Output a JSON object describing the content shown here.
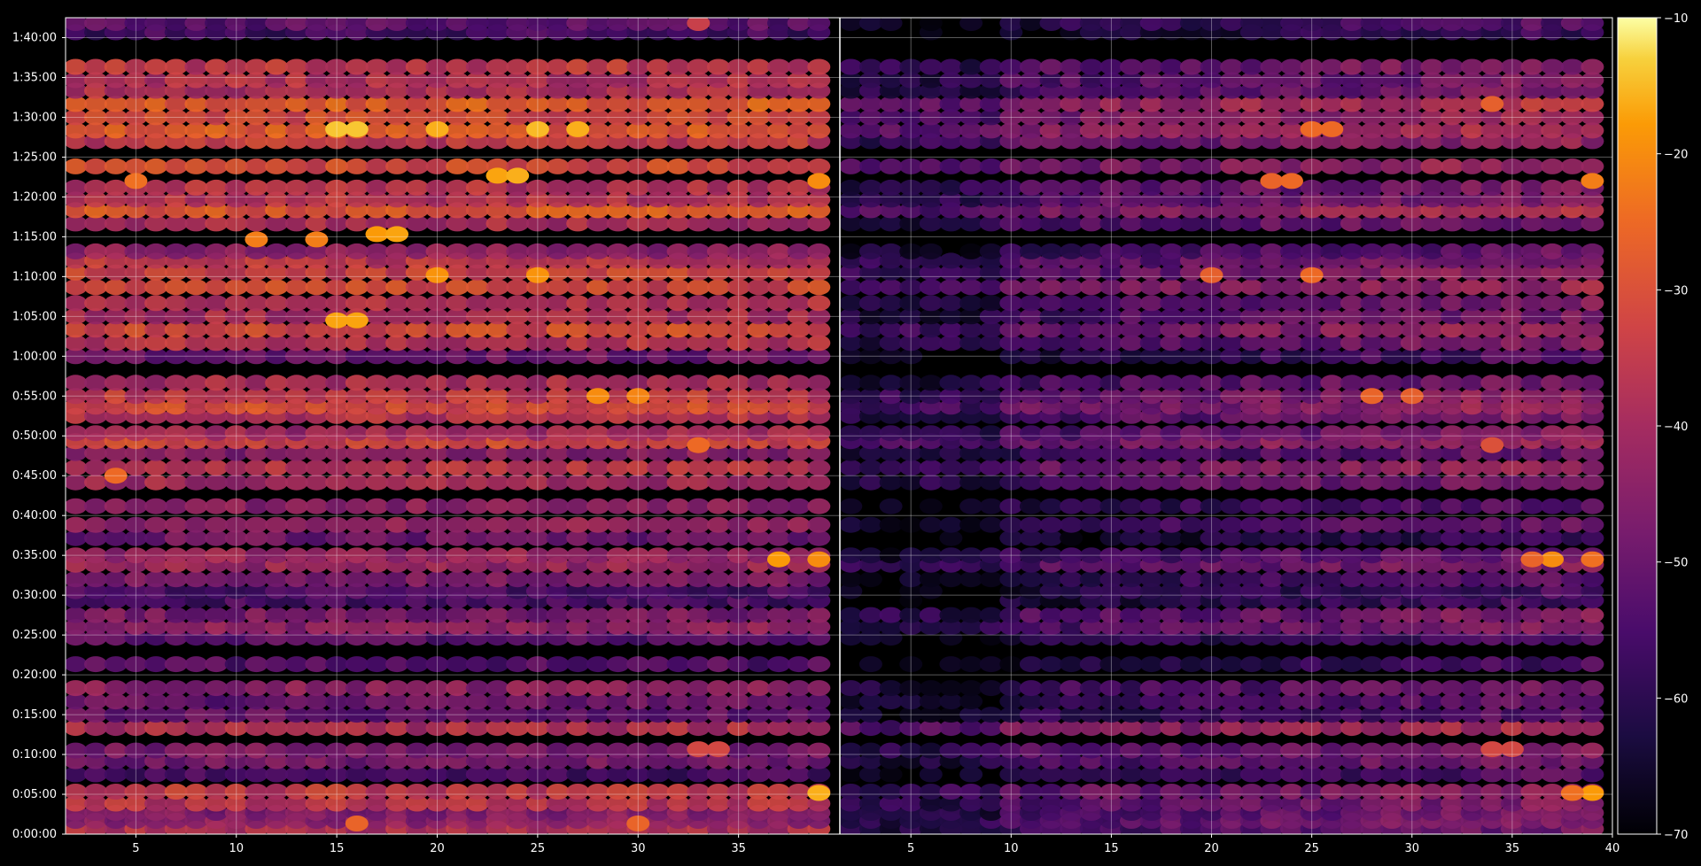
{
  "chart_data": {
    "type": "heatmap",
    "title": "",
    "xlabel": "",
    "ylabel": "",
    "background": "#000000",
    "grid": true,
    "colormap": "inferno",
    "x_axis": {
      "panel_range": [
        1.5,
        40
      ],
      "ticks": [
        5,
        10,
        15,
        20,
        25,
        30,
        35,
        40
      ],
      "tick_labels": [
        "5",
        "10",
        "15",
        "20",
        "25",
        "30",
        "35",
        "40"
      ]
    },
    "y_axis": {
      "range_seconds": [
        0,
        6150
      ],
      "ticks_seconds": [
        0,
        300,
        600,
        900,
        1200,
        1500,
        1800,
        2100,
        2400,
        2700,
        3000,
        3300,
        3600,
        3900,
        4200,
        4500,
        4800,
        5100,
        5400,
        5700,
        6000
      ],
      "tick_labels": [
        "0:00:00",
        "0:05:00",
        "0:10:00",
        "0:15:00",
        "0:20:00",
        "0:25:00",
        "0:30:00",
        "0:35:00",
        "0:40:00",
        "0:45:00",
        "0:50:00",
        "0:55:00",
        "1:00:00",
        "1:05:00",
        "1:10:00",
        "1:15:00",
        "1:20:00",
        "1:25:00",
        "1:30:00",
        "1:35:00",
        "1:40:00"
      ]
    },
    "colorbar": {
      "range": [
        -70,
        -10
      ],
      "ticks": [
        -10,
        -20,
        -30,
        -40,
        -50,
        -60,
        -70
      ],
      "tick_labels": [
        "−10",
        "−20",
        "−30",
        "−40",
        "−50",
        "−60",
        "−70"
      ]
    },
    "panels": [
      {
        "name": "left",
        "x_range": [
          1.5,
          40
        ],
        "x_tick_values": [
          5,
          10,
          15,
          20,
          25,
          30,
          35
        ],
        "bands": [
          {
            "t": 40,
            "v": -38
          },
          {
            "t": 100,
            "v": -44
          },
          {
            "t": 160,
            "v": -46
          },
          {
            "t": 230,
            "v": -36
          },
          {
            "t": 320,
            "v": -35
          },
          {
            "t": 450,
            "v": -56
          },
          {
            "t": 550,
            "v": -48
          },
          {
            "t": 630,
            "v": -47
          },
          {
            "t": 800,
            "v": -38
          },
          {
            "t": 900,
            "v": -51
          },
          {
            "t": 1000,
            "v": -50
          },
          {
            "t": 1100,
            "v": -44
          },
          {
            "t": 1280,
            "v": -53
          },
          {
            "t": 1480,
            "v": -52
          },
          {
            "t": 1560,
            "v": -44
          },
          {
            "t": 1650,
            "v": -47
          },
          {
            "t": 1760,
            "v": -55
          },
          {
            "t": 1830,
            "v": -55
          },
          {
            "t": 1920,
            "v": -46
          },
          {
            "t": 2030,
            "v": -42
          },
          {
            "t": 2100,
            "v": -42
          },
          {
            "t": 2230,
            "v": -49
          },
          {
            "t": 2330,
            "v": -42
          },
          {
            "t": 2470,
            "v": -44
          },
          {
            "t": 2650,
            "v": -40
          },
          {
            "t": 2760,
            "v": -37
          },
          {
            "t": 2870,
            "v": -45
          },
          {
            "t": 2960,
            "v": -32
          },
          {
            "t": 3020,
            "v": -41
          },
          {
            "t": 3150,
            "v": -37
          },
          {
            "t": 3220,
            "v": -31
          },
          {
            "t": 3300,
            "v": -35
          },
          {
            "t": 3400,
            "v": -39
          },
          {
            "t": 3600,
            "v": -49
          },
          {
            "t": 3700,
            "v": -37
          },
          {
            "t": 3800,
            "v": -31
          },
          {
            "t": 3900,
            "v": -39
          },
          {
            "t": 4000,
            "v": -37
          },
          {
            "t": 4120,
            "v": -32
          },
          {
            "t": 4230,
            "v": -33
          },
          {
            "t": 4320,
            "v": -36
          },
          {
            "t": 4390,
            "v": -44
          },
          {
            "t": 4600,
            "v": -39
          },
          {
            "t": 4700,
            "v": -28
          },
          {
            "t": 4780,
            "v": -37
          },
          {
            "t": 4870,
            "v": -37
          },
          {
            "t": 5030,
            "v": -31
          },
          {
            "t": 5220,
            "v": -35
          },
          {
            "t": 5300,
            "v": -28
          },
          {
            "t": 5400,
            "v": -31
          },
          {
            "t": 5500,
            "v": -28
          },
          {
            "t": 5600,
            "v": -38
          },
          {
            "t": 5680,
            "v": -38
          },
          {
            "t": 5780,
            "v": -35
          },
          {
            "t": 6040,
            "v": -56
          },
          {
            "t": 6110,
            "v": -52
          }
        ],
        "hotspots": [
          {
            "x": 15,
            "t": 5310,
            "v": -14
          },
          {
            "x": 16,
            "t": 5310,
            "v": -14
          },
          {
            "x": 20,
            "t": 5310,
            "v": -16
          },
          {
            "x": 25,
            "t": 5310,
            "v": -15
          },
          {
            "x": 27,
            "t": 5310,
            "v": -16
          },
          {
            "x": 5,
            "t": 4920,
            "v": -24
          },
          {
            "x": 23,
            "t": 4960,
            "v": -17
          },
          {
            "x": 24,
            "t": 4960,
            "v": -16
          },
          {
            "x": 39,
            "t": 4920,
            "v": -20
          },
          {
            "x": 17,
            "t": 4520,
            "v": -18
          },
          {
            "x": 18,
            "t": 4520,
            "v": -17
          },
          {
            "x": 11,
            "t": 4480,
            "v": -22
          },
          {
            "x": 14,
            "t": 4480,
            "v": -22
          },
          {
            "x": 20,
            "t": 4210,
            "v": -19
          },
          {
            "x": 25,
            "t": 4210,
            "v": -19
          },
          {
            "x": 15,
            "t": 3870,
            "v": -17
          },
          {
            "x": 16,
            "t": 3870,
            "v": -17
          },
          {
            "x": 28,
            "t": 3300,
            "v": -20
          },
          {
            "x": 30,
            "t": 3300,
            "v": -21
          },
          {
            "x": 33,
            "t": 2930,
            "v": -25
          },
          {
            "x": 4,
            "t": 2700,
            "v": -25
          },
          {
            "x": 37,
            "t": 2070,
            "v": -18
          },
          {
            "x": 39,
            "t": 2070,
            "v": -20
          },
          {
            "x": 33,
            "t": 640,
            "v": -32
          },
          {
            "x": 34,
            "t": 640,
            "v": -32
          },
          {
            "x": 39,
            "t": 310,
            "v": -16
          },
          {
            "x": 16,
            "t": 80,
            "v": -26
          },
          {
            "x": 30,
            "t": 80,
            "v": -26
          },
          {
            "x": 33,
            "t": 6110,
            "v": -34
          }
        ]
      },
      {
        "name": "right",
        "x_range": [
          1.5,
          40
        ],
        "x_tick_values": [
          5,
          10,
          15,
          20,
          25,
          30,
          35,
          40
        ],
        "bands": [
          {
            "t": 40,
            "v": -57
          },
          {
            "t": 100,
            "v": -54
          },
          {
            "t": 160,
            "v": -56
          },
          {
            "t": 230,
            "v": -54
          },
          {
            "t": 320,
            "v": -52
          },
          {
            "t": 450,
            "v": -62
          },
          {
            "t": 550,
            "v": -56
          },
          {
            "t": 630,
            "v": -54
          },
          {
            "t": 800,
            "v": -47
          },
          {
            "t": 900,
            "v": -61
          },
          {
            "t": 1000,
            "v": -60
          },
          {
            "t": 1100,
            "v": -57
          },
          {
            "t": 1280,
            "v": -64
          },
          {
            "t": 1480,
            "v": -62
          },
          {
            "t": 1560,
            "v": -55
          },
          {
            "t": 1650,
            "v": -54
          },
          {
            "t": 1760,
            "v": -64
          },
          {
            "t": 1830,
            "v": -64
          },
          {
            "t": 1920,
            "v": -60
          },
          {
            "t": 2030,
            "v": -54
          },
          {
            "t": 2100,
            "v": -58
          },
          {
            "t": 2230,
            "v": -66
          },
          {
            "t": 2330,
            "v": -58
          },
          {
            "t": 2470,
            "v": -61
          },
          {
            "t": 2650,
            "v": -55
          },
          {
            "t": 2760,
            "v": -51
          },
          {
            "t": 2870,
            "v": -58
          },
          {
            "t": 2960,
            "v": -49
          },
          {
            "t": 3020,
            "v": -55
          },
          {
            "t": 3150,
            "v": -55
          },
          {
            "t": 3220,
            "v": -50
          },
          {
            "t": 3300,
            "v": -52
          },
          {
            "t": 3400,
            "v": -56
          },
          {
            "t": 3600,
            "v": -62
          },
          {
            "t": 3700,
            "v": -55
          },
          {
            "t": 3800,
            "v": -50
          },
          {
            "t": 3900,
            "v": -56
          },
          {
            "t": 4000,
            "v": -55
          },
          {
            "t": 4120,
            "v": -50
          },
          {
            "t": 4230,
            "v": -52
          },
          {
            "t": 4320,
            "v": -54
          },
          {
            "t": 4390,
            "v": -59
          },
          {
            "t": 4600,
            "v": -56
          },
          {
            "t": 4700,
            "v": -47
          },
          {
            "t": 4780,
            "v": -54
          },
          {
            "t": 4870,
            "v": -54
          },
          {
            "t": 5030,
            "v": -49
          },
          {
            "t": 5220,
            "v": -52
          },
          {
            "t": 5300,
            "v": -46
          },
          {
            "t": 5400,
            "v": -48
          },
          {
            "t": 5500,
            "v": -45
          },
          {
            "t": 5600,
            "v": -55
          },
          {
            "t": 5680,
            "v": -55
          },
          {
            "t": 5780,
            "v": -53
          },
          {
            "t": 6040,
            "v": -66
          },
          {
            "t": 6110,
            "v": -62
          }
        ],
        "ramp": {
          "start_x": 10,
          "end_x": 40,
          "gain": 22
        },
        "hotspots": [
          {
            "x": 39,
            "t": 310,
            "v": -18
          },
          {
            "x": 38,
            "t": 310,
            "v": -24
          },
          {
            "x": 34,
            "t": 640,
            "v": -32
          },
          {
            "x": 35,
            "t": 640,
            "v": -32
          },
          {
            "x": 37,
            "t": 2070,
            "v": -20
          },
          {
            "x": 36,
            "t": 2070,
            "v": -26
          },
          {
            "x": 39,
            "t": 2070,
            "v": -24
          },
          {
            "x": 34,
            "t": 2930,
            "v": -30
          },
          {
            "x": 28,
            "t": 3300,
            "v": -26
          },
          {
            "x": 30,
            "t": 3300,
            "v": -27
          },
          {
            "x": 25,
            "t": 4210,
            "v": -25
          },
          {
            "x": 20,
            "t": 4210,
            "v": -27
          },
          {
            "x": 23,
            "t": 4920,
            "v": -26
          },
          {
            "x": 24,
            "t": 4920,
            "v": -25
          },
          {
            "x": 39,
            "t": 4920,
            "v": -22
          },
          {
            "x": 25,
            "t": 5310,
            "v": -25
          },
          {
            "x": 26,
            "t": 5310,
            "v": -25
          },
          {
            "x": 34,
            "t": 5500,
            "v": -27
          }
        ]
      }
    ]
  }
}
